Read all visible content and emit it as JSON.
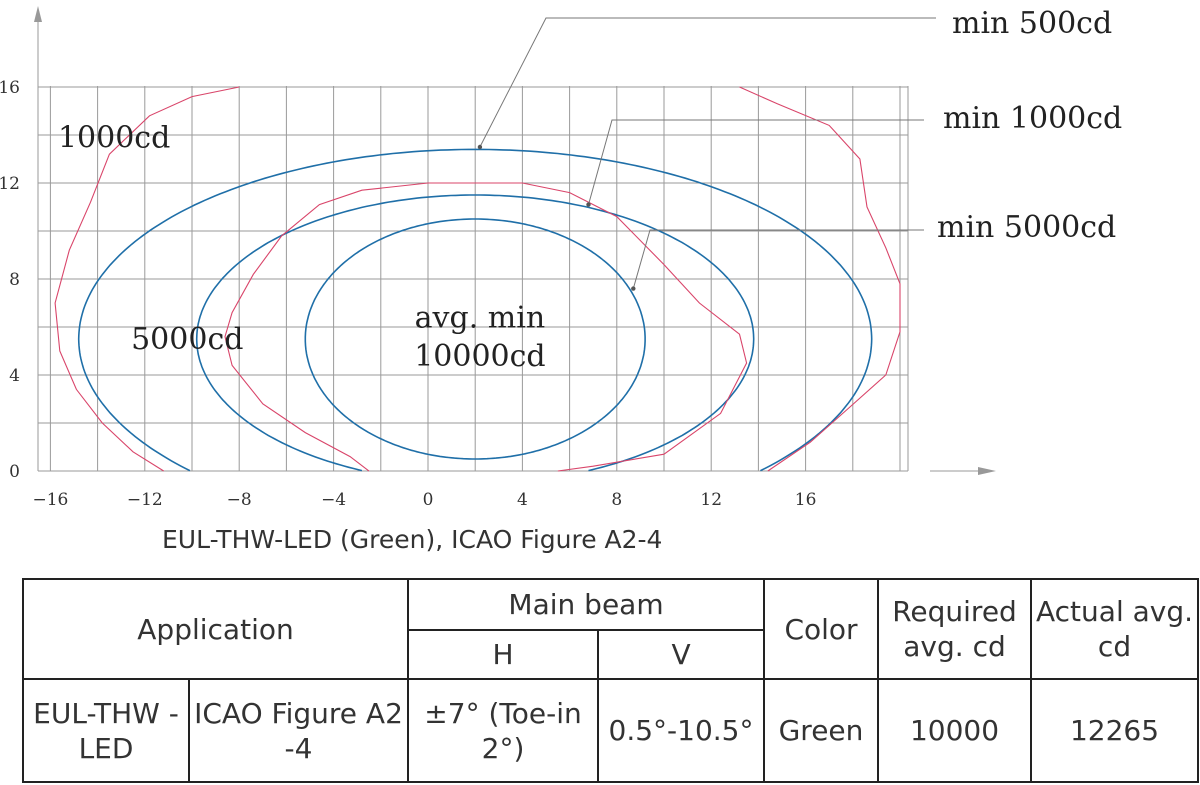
{
  "chart_data": {
    "type": "line",
    "x_ticks": [
      "−16",
      "−12",
      "−8",
      "−4",
      "0",
      "4",
      "8",
      "12",
      "16"
    ],
    "y_ticks": [
      "0",
      "4",
      "8",
      "12",
      "16"
    ],
    "xlim": [
      -17,
      20
    ],
    "ylim": [
      0,
      16
    ],
    "grid": true,
    "grid_step": 2,
    "contours": [
      {
        "kind": "ellipse",
        "label": "min 500cd",
        "center": [
          2.0,
          5.5
        ],
        "rx": 16.8,
        "ry": 7.9,
        "color": "#1f6fa8"
      },
      {
        "kind": "ellipse",
        "label": "min 1000cd",
        "center": [
          2.0,
          5.5
        ],
        "rx": 11.8,
        "ry": 6.0,
        "color": "#1f6fa8"
      },
      {
        "kind": "ellipse",
        "label": "min 5000cd",
        "center": [
          2.0,
          5.5
        ],
        "rx": 7.2,
        "ry": 5.0,
        "color": "#1f6fa8"
      }
    ],
    "series": [
      {
        "name": "1000cd",
        "color": "#d9456a",
        "points": [
          [
            -8,
            16
          ],
          [
            -10,
            15.6
          ],
          [
            -11.8,
            14.8
          ],
          [
            -13.5,
            13.2
          ],
          [
            -14.3,
            11.2
          ],
          [
            -15.2,
            9.2
          ],
          [
            -15.8,
            7
          ],
          [
            -15.6,
            5
          ],
          [
            -14.9,
            3.4
          ],
          [
            -13.8,
            2
          ],
          [
            -12.5,
            0.8
          ],
          [
            -11.2,
            0
          ]
        ]
      },
      {
        "name": "1000cd",
        "color": "#d9456a",
        "points": [
          [
            13.2,
            16
          ],
          [
            14.8,
            15.3
          ],
          [
            17,
            14.4
          ],
          [
            18.3,
            13
          ],
          [
            18.6,
            11
          ],
          [
            19.4,
            9.3
          ],
          [
            20,
            7.8
          ],
          [
            20,
            5.8
          ],
          [
            19.4,
            4
          ],
          [
            17.8,
            2.6
          ],
          [
            16.2,
            1.2
          ],
          [
            14.4,
            0
          ]
        ]
      },
      {
        "name": "5000cd",
        "color": "#d9456a",
        "points": [
          [
            0,
            12
          ],
          [
            -2.8,
            11.7
          ],
          [
            -4.6,
            11.1
          ],
          [
            -6.2,
            9.8
          ],
          [
            -7.4,
            8.2
          ],
          [
            -8.3,
            6.6
          ],
          [
            -8.6,
            5.6
          ],
          [
            -8.3,
            4.4
          ],
          [
            -7,
            2.8
          ],
          [
            -5.2,
            1.6
          ],
          [
            -3.3,
            0.6
          ],
          [
            -2.5,
            0
          ]
        ]
      },
      {
        "name": "5000cd",
        "color": "#d9456a",
        "points": [
          [
            0,
            12
          ],
          [
            4,
            12
          ],
          [
            6,
            11.6
          ],
          [
            8,
            10.6
          ],
          [
            10,
            8.6
          ],
          [
            11.5,
            7
          ],
          [
            13.2,
            5.7
          ],
          [
            13.5,
            4.5
          ],
          [
            12.4,
            2.4
          ],
          [
            10,
            0.7
          ],
          [
            7,
            0.2
          ],
          [
            5.5,
            0
          ]
        ]
      }
    ],
    "contour_labels": [
      {
        "text": "1000cd",
        "x": -13.3,
        "y": 13.9
      },
      {
        "text": "5000cd",
        "x": -10.2,
        "y": 5.5
      },
      {
        "text": "avg. min",
        "x": 2.2,
        "y": 6.4
      },
      {
        "text": "10000cd",
        "x": 2.2,
        "y": 4.8
      }
    ],
    "callouts": [
      {
        "text": "min 500cd",
        "target": [
          2.2,
          13.5
        ]
      },
      {
        "text": "min 1000cd",
        "target": [
          6.8,
          11.1
        ]
      },
      {
        "text": "min 5000cd",
        "target": [
          8.7,
          7.6
        ]
      }
    ]
  },
  "caption": "EUL-THW-LED (Green), ICAO Figure A2-4",
  "table": {
    "header": {
      "application": "Application",
      "main_beam": "Main beam",
      "h": "H",
      "v": "V",
      "color": "Color",
      "required": "Required avg. cd",
      "actual": "Actual avg. cd"
    },
    "row": {
      "app_name": "EUL-THW -LED",
      "app_figure": "ICAO Figure A2 -4",
      "h": "±7° (Toe-in 2°)",
      "v": "0.5°-10.5°",
      "color": "Green",
      "required": "10000",
      "actual": "12265"
    }
  }
}
